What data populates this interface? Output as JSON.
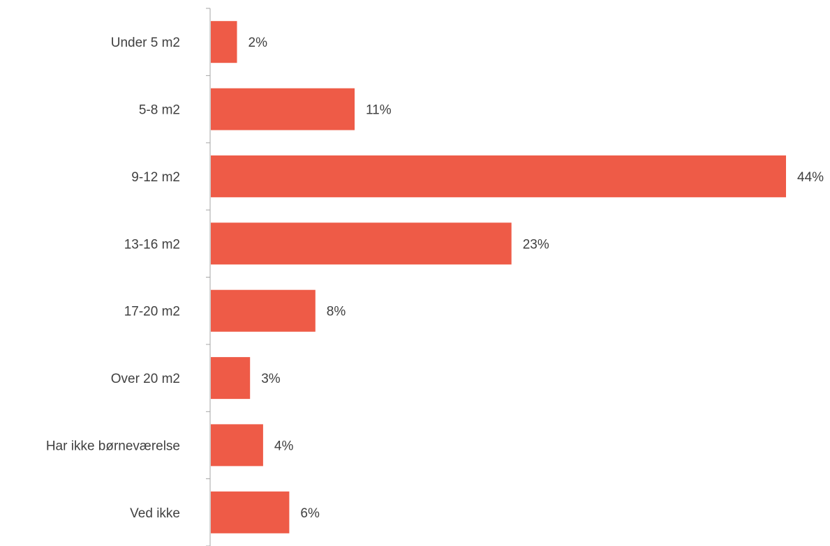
{
  "chart_data": {
    "type": "bar",
    "orientation": "horizontal",
    "categories": [
      "Under 5 m2",
      "5-8 m2",
      "9-12 m2",
      "13-16 m2",
      "17-20 m2",
      "Over 20 m2",
      "Har ikke børneværelse",
      "Ved ikke"
    ],
    "values": [
      2,
      11,
      44,
      23,
      8,
      3,
      4,
      6
    ],
    "value_labels": [
      "2%",
      "11%",
      "44%",
      "23%",
      "8%",
      "3%",
      "4%",
      "6%"
    ],
    "unit": "%",
    "title": "",
    "xlabel": "",
    "ylabel": "",
    "xlim": [
      0,
      44
    ],
    "grid": false,
    "legend": "none",
    "bar_color": "#EE5B47",
    "axis_color": "#A6A6A6",
    "text_color": "#404040"
  }
}
